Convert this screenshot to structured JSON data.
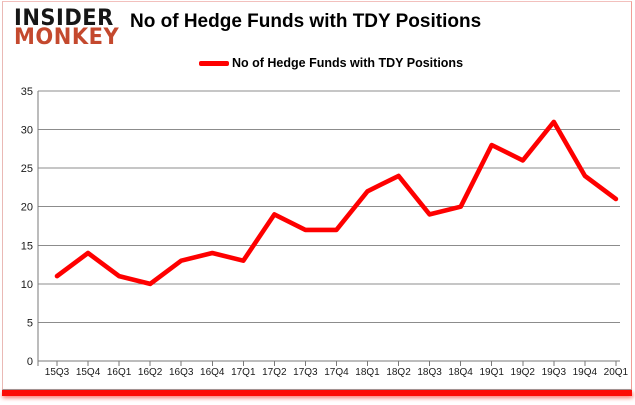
{
  "logo": {
    "line1": "INSIDER",
    "line2": "MONKEY"
  },
  "header": {
    "title": "No of Hedge Funds with TDY Positions"
  },
  "legend": {
    "label": "No of Hedge Funds with TDY Positions"
  },
  "chart_data": {
    "type": "line",
    "title": "No of Hedge Funds with TDY Positions",
    "categories": [
      "15Q3",
      "15Q4",
      "16Q1",
      "16Q2",
      "16Q3",
      "16Q4",
      "17Q1",
      "17Q2",
      "17Q3",
      "17Q4",
      "18Q1",
      "18Q2",
      "18Q3",
      "18Q4",
      "19Q1",
      "19Q2",
      "19Q3",
      "19Q4",
      "20Q1"
    ],
    "series": [
      {
        "name": "No of Hedge Funds with TDY Positions",
        "values": [
          11,
          14,
          11,
          10,
          13,
          14,
          13,
          19,
          17,
          17,
          22,
          24,
          19,
          20,
          28,
          26,
          31,
          24,
          21
        ]
      }
    ],
    "xlabel": "",
    "ylabel": "",
    "ylim": [
      0,
      35
    ],
    "ytick_step": 5,
    "grid": true,
    "legend_position": "top",
    "line_color": "#fe0000",
    "gridline_color": "#8c8c8c",
    "axis_color": "#7a7a7a",
    "label_color": "#1a1a1a"
  },
  "colors": {
    "logo_black": "#161616",
    "logo_red": "#c4492e",
    "accent_red": "#fe0000",
    "bottom_bar": "#fc0d06"
  }
}
